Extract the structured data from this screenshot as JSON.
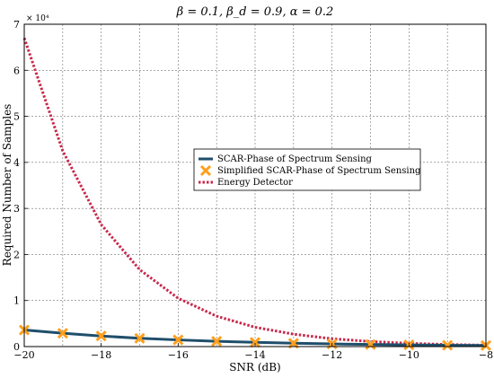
{
  "chart_data": {
    "type": "line",
    "title": "β = 0.1, β_d = 0.9, α = 0.2",
    "xlabel": "SNR (dB)",
    "ylabel": "Required Number of Samples",
    "y_multiplier_label": "× 10⁴",
    "xlim": [
      -20,
      -8
    ],
    "ylim": [
      0,
      7
    ],
    "x_ticks": [
      -20,
      -18,
      -16,
      -14,
      -12,
      -10,
      -8
    ],
    "x_tick_labels": [
      "−20",
      "−18",
      "−16",
      "−14",
      "−12",
      "−10",
      "−8"
    ],
    "y_ticks": [
      0,
      1,
      2,
      3,
      4,
      5,
      6,
      7
    ],
    "y_tick_labels": [
      "0",
      "1",
      "2",
      "3",
      "4",
      "5",
      "6",
      "7"
    ],
    "grid": true,
    "legend_position": "center-right",
    "x": [
      -20,
      -19,
      -18,
      -17,
      -16,
      -15,
      -14,
      -13,
      -12,
      -11,
      -10,
      -9,
      -8
    ],
    "series": [
      {
        "name": "SCAR-Phase of Spectrum Sensing",
        "style": "solid",
        "color": "#1f4e6b",
        "values": [
          0.36,
          0.29,
          0.23,
          0.18,
          0.145,
          0.115,
          0.092,
          0.073,
          0.058,
          0.046,
          0.037,
          0.029,
          0.024
        ]
      },
      {
        "name": "Simplified SCAR-Phase of Spectrum Sensing",
        "style": "marker-x",
        "color": "#ff9f1c",
        "values": [
          0.36,
          0.29,
          0.23,
          0.18,
          0.145,
          0.115,
          0.092,
          0.073,
          0.058,
          0.046,
          0.037,
          0.029,
          0.024
        ]
      },
      {
        "name": "Energy Detector",
        "style": "dotted",
        "color": "#c8284b",
        "values": [
          6.7,
          4.25,
          2.65,
          1.67,
          1.05,
          0.66,
          0.42,
          0.27,
          0.17,
          0.11,
          0.07,
          0.045,
          0.03
        ]
      }
    ]
  }
}
